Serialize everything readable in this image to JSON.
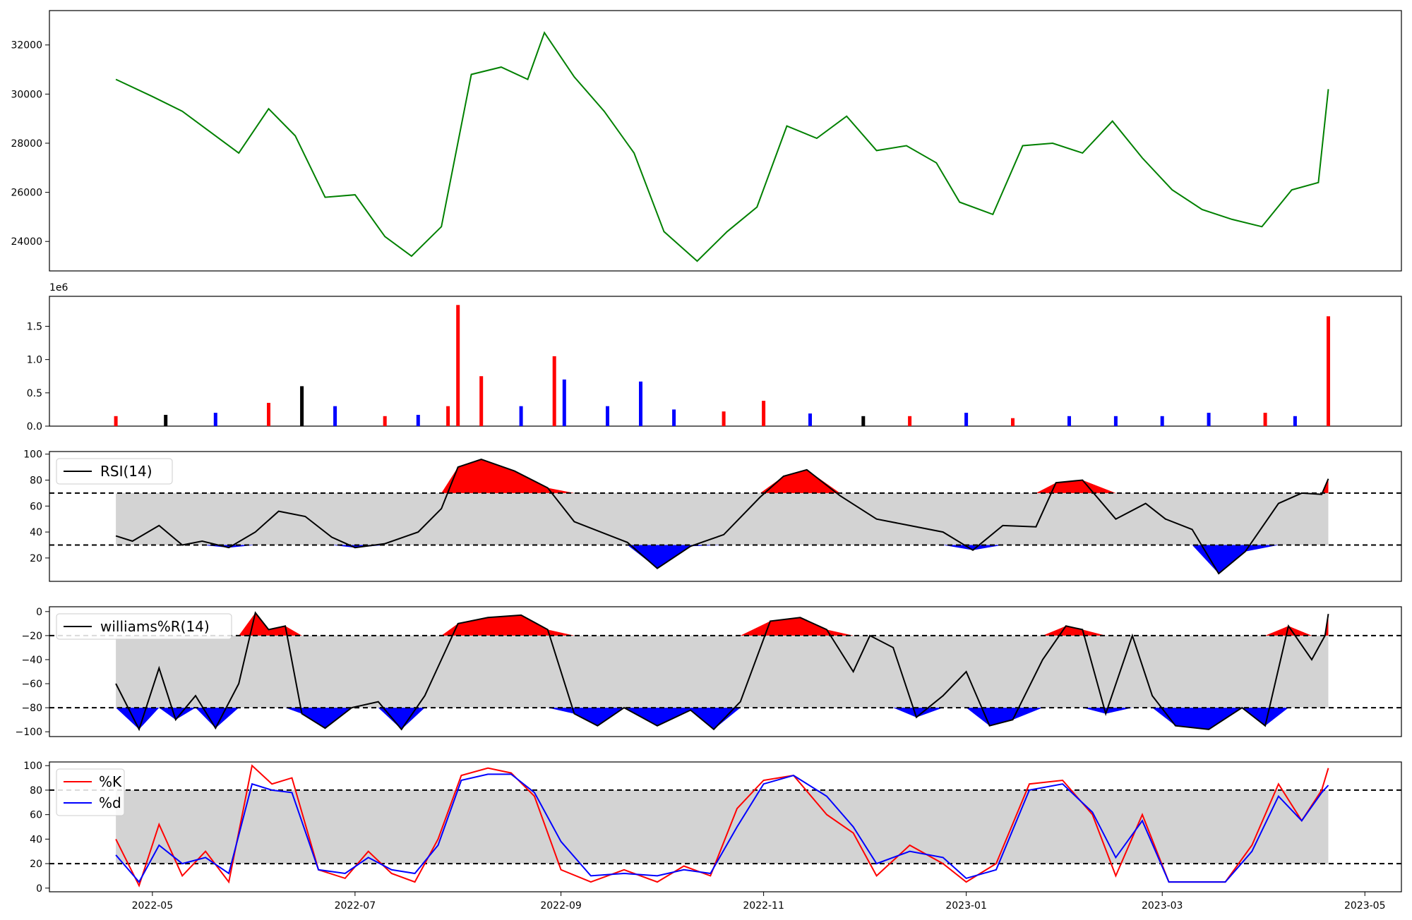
{
  "chart_data": [
    {
      "type": "line",
      "panel": "price",
      "ylim": [
        22800,
        33400
      ],
      "y_ticks": [
        24000,
        26000,
        28000,
        30000,
        32000
      ],
      "tick_labels": [
        "24000",
        "26000",
        "28000",
        "30000",
        "32000"
      ],
      "grid": false,
      "colors": {
        "line": "#008000"
      },
      "x": [
        "2022-04-20",
        "2022-05-01",
        "2022-05-10",
        "2022-05-18",
        "2022-05-27",
        "2022-06-05",
        "2022-06-13",
        "2022-06-22",
        "2022-07-01",
        "2022-07-10",
        "2022-07-18",
        "2022-07-27",
        "2022-08-05",
        "2022-08-14",
        "2022-08-22",
        "2022-08-27",
        "2022-09-05",
        "2022-09-14",
        "2022-09-23",
        "2022-10-02",
        "2022-10-12",
        "2022-10-21",
        "2022-10-30",
        "2022-11-08",
        "2022-11-17",
        "2022-11-26",
        "2022-12-05",
        "2022-12-14",
        "2022-12-23",
        "2022-12-30",
        "2023-01-09",
        "2023-01-18",
        "2023-01-27",
        "2023-02-05",
        "2023-02-14",
        "2023-02-23",
        "2023-03-04",
        "2023-03-13",
        "2023-03-22",
        "2023-03-31",
        "2023-04-09",
        "2023-04-17",
        "2023-04-20"
      ],
      "values": [
        30600,
        29900,
        29300,
        28500,
        27600,
        29400,
        28300,
        25800,
        25900,
        24200,
        23400,
        24600,
        30800,
        31100,
        30600,
        32500,
        30700,
        29300,
        27600,
        24400,
        23200,
        24400,
        25400,
        28700,
        28200,
        29100,
        27700,
        27900,
        27200,
        25600,
        25100,
        27900,
        28000,
        27600,
        28900,
        27400,
        26100,
        25300,
        24900,
        24600,
        26100,
        26400,
        30200
      ]
    },
    {
      "type": "bar",
      "panel": "volume",
      "ylim": [
        0,
        1950000
      ],
      "y_ticks": [
        0,
        500000,
        1000000,
        1500000
      ],
      "tick_labels": [
        "0.0",
        "0.5",
        "1.0",
        "1.5"
      ],
      "offset_label": "1e6",
      "grid": false,
      "colors": {
        "up": "#ff0000",
        "down": "#0000ff",
        "flat": "#000000"
      },
      "x": [
        "2022-04-20",
        "2022-05-05",
        "2022-05-20",
        "2022-06-05",
        "2022-06-15",
        "2022-06-25",
        "2022-07-10",
        "2022-07-20",
        "2022-07-29",
        "2022-08-01",
        "2022-08-08",
        "2022-08-20",
        "2022-08-30",
        "2022-09-02",
        "2022-09-15",
        "2022-09-25",
        "2022-10-05",
        "2022-10-20",
        "2022-11-01",
        "2022-11-15",
        "2022-12-01",
        "2022-12-15",
        "2023-01-01",
        "2023-01-15",
        "2023-02-01",
        "2023-02-15",
        "2023-03-01",
        "2023-03-15",
        "2023-04-01",
        "2023-04-10",
        "2023-04-20"
      ],
      "values": [
        150000,
        170000,
        200000,
        350000,
        600000,
        300000,
        150000,
        170000,
        300000,
        1820000,
        750000,
        300000,
        1050000,
        700000,
        300000,
        670000,
        250000,
        220000,
        380000,
        190000,
        150000,
        150000,
        200000,
        120000,
        150000,
        150000,
        150000,
        200000,
        200000,
        150000,
        1650000
      ],
      "directions": [
        "up",
        "flat",
        "down",
        "up",
        "flat",
        "down",
        "up",
        "down",
        "up",
        "up",
        "up",
        "down",
        "up",
        "down",
        "down",
        "down",
        "down",
        "up",
        "up",
        "down",
        "flat",
        "up",
        "down",
        "up",
        "down",
        "down",
        "down",
        "down",
        "up",
        "down",
        "up"
      ]
    },
    {
      "type": "line",
      "panel": "rsi",
      "ylim": [
        2,
        102
      ],
      "y_ticks": [
        20,
        40,
        60,
        80,
        100
      ],
      "tick_labels": [
        "20",
        "40",
        "60",
        "80",
        "100"
      ],
      "thresholds": [
        30,
        70
      ],
      "grid": false,
      "legend": "top-left",
      "series": [
        {
          "name": "RSI(14)",
          "color": "#000000"
        }
      ],
      "colors": {
        "overbought_fill": "#ff0000",
        "oversold_fill": "#0000ff",
        "band": "#d3d3d3"
      },
      "x": [
        "2022-04-20",
        "2022-04-25",
        "2022-05-03",
        "2022-05-10",
        "2022-05-16",
        "2022-05-24",
        "2022-06-01",
        "2022-06-08",
        "2022-06-16",
        "2022-06-24",
        "2022-07-01",
        "2022-07-10",
        "2022-07-20",
        "2022-07-27",
        "2022-08-01",
        "2022-08-08",
        "2022-08-18",
        "2022-08-28",
        "2022-09-05",
        "2022-09-15",
        "2022-09-21",
        "2022-09-30",
        "2022-10-10",
        "2022-10-20",
        "2022-10-31",
        "2022-11-07",
        "2022-11-14",
        "2022-11-24",
        "2022-12-05",
        "2022-12-15",
        "2022-12-25",
        "2023-01-03",
        "2023-01-12",
        "2023-01-22",
        "2023-01-28",
        "2023-02-05",
        "2023-02-15",
        "2023-02-24",
        "2023-03-02",
        "2023-03-10",
        "2023-03-18",
        "2023-03-26",
        "2023-04-05",
        "2023-04-12",
        "2023-04-18",
        "2023-04-20"
      ],
      "values": [
        37,
        33,
        45,
        30,
        33,
        28,
        40,
        56,
        52,
        36,
        28,
        31,
        40,
        58,
        90,
        96,
        87,
        74,
        48,
        38,
        32,
        12,
        29,
        38,
        67,
        83,
        88,
        68,
        50,
        45,
        40,
        26,
        45,
        44,
        78,
        80,
        50,
        62,
        50,
        42,
        8,
        25,
        62,
        70,
        69,
        81
      ]
    },
    {
      "type": "line",
      "panel": "williams",
      "ylim": [
        -104,
        4
      ],
      "y_ticks": [
        -100,
        -80,
        -60,
        -40,
        -20,
        0
      ],
      "tick_labels": [
        "−100",
        "−80",
        "−60",
        "−40",
        "−20",
        "0"
      ],
      "thresholds": [
        -80,
        -20
      ],
      "grid": false,
      "legend": "top-left",
      "series": [
        {
          "name": "williams%R(14)",
          "color": "#000000"
        }
      ],
      "colors": {
        "overbought_fill": "#ff0000",
        "oversold_fill": "#0000ff",
        "band": "#d3d3d3"
      },
      "x": [
        "2022-04-20",
        "2022-04-27",
        "2022-05-03",
        "2022-05-08",
        "2022-05-14",
        "2022-05-20",
        "2022-05-27",
        "2022-06-01",
        "2022-06-05",
        "2022-06-10",
        "2022-06-15",
        "2022-06-22",
        "2022-06-30",
        "2022-07-08",
        "2022-07-15",
        "2022-07-22",
        "2022-07-27",
        "2022-08-01",
        "2022-08-10",
        "2022-08-20",
        "2022-08-28",
        "2022-09-05",
        "2022-09-12",
        "2022-09-20",
        "2022-09-30",
        "2022-10-10",
        "2022-10-17",
        "2022-10-25",
        "2022-11-03",
        "2022-11-12",
        "2022-11-20",
        "2022-11-28",
        "2022-12-03",
        "2022-12-10",
        "2022-12-17",
        "2022-12-25",
        "2023-01-01",
        "2023-01-08",
        "2023-01-15",
        "2023-01-24",
        "2023-01-31",
        "2023-02-05",
        "2023-02-12",
        "2023-02-20",
        "2023-02-26",
        "2023-03-05",
        "2023-03-15",
        "2023-03-25",
        "2023-04-01",
        "2023-04-08",
        "2023-04-15",
        "2023-04-19",
        "2023-04-20"
      ],
      "values": [
        -60,
        -98,
        -47,
        -90,
        -70,
        -97,
        -60,
        -1,
        -15,
        -12,
        -85,
        -97,
        -80,
        -75,
        -98,
        -70,
        -40,
        -10,
        -5,
        -3,
        -15,
        -85,
        -95,
        -80,
        -95,
        -82,
        -98,
        -75,
        -8,
        -5,
        -15,
        -50,
        -20,
        -30,
        -88,
        -70,
        -50,
        -95,
        -90,
        -40,
        -12,
        -15,
        -85,
        -20,
        -70,
        -95,
        -98,
        -80,
        -95,
        -12,
        -40,
        -20,
        -2
      ]
    },
    {
      "type": "line",
      "panel": "stochastic",
      "ylim": [
        -3,
        103
      ],
      "y_ticks": [
        0,
        20,
        40,
        60,
        80,
        100
      ],
      "tick_labels": [
        "0",
        "20",
        "40",
        "60",
        "80",
        "100"
      ],
      "thresholds": [
        20,
        80
      ],
      "grid": false,
      "legend": "top-left",
      "colors": {
        "band": "#d3d3d3"
      },
      "x": [
        "2022-04-20",
        "2022-04-27",
        "2022-05-03",
        "2022-05-10",
        "2022-05-17",
        "2022-05-24",
        "2022-05-31",
        "2022-06-06",
        "2022-06-12",
        "2022-06-20",
        "2022-06-28",
        "2022-07-05",
        "2022-07-12",
        "2022-07-19",
        "2022-07-26",
        "2022-08-02",
        "2022-08-10",
        "2022-08-17",
        "2022-08-24",
        "2022-09-01",
        "2022-09-10",
        "2022-09-20",
        "2022-09-30",
        "2022-10-08",
        "2022-10-16",
        "2022-10-24",
        "2022-11-01",
        "2022-11-10",
        "2022-11-20",
        "2022-11-28",
        "2022-12-05",
        "2022-12-15",
        "2022-12-25",
        "2023-01-01",
        "2023-01-10",
        "2023-01-20",
        "2023-01-30",
        "2023-02-08",
        "2023-02-15",
        "2023-02-23",
        "2023-03-03",
        "2023-03-12",
        "2023-03-20",
        "2023-03-28",
        "2023-04-05",
        "2023-04-12",
        "2023-04-18",
        "2023-04-20"
      ],
      "series": [
        {
          "name": "%K",
          "color": "#ff0000",
          "values": [
            40,
            2,
            52,
            10,
            30,
            5,
            100,
            85,
            90,
            15,
            8,
            30,
            12,
            5,
            40,
            92,
            98,
            94,
            75,
            15,
            5,
            15,
            5,
            18,
            10,
            65,
            88,
            92,
            60,
            45,
            10,
            35,
            20,
            5,
            20,
            85,
            88,
            60,
            10,
            60,
            5,
            5,
            5,
            35,
            85,
            55,
            80,
            98
          ]
        },
        {
          "name": "%d",
          "color": "#0000ff",
          "values": [
            27,
            5,
            35,
            20,
            25,
            12,
            85,
            80,
            78,
            15,
            12,
            25,
            15,
            12,
            35,
            88,
            93,
            93,
            78,
            38,
            10,
            12,
            10,
            15,
            12,
            50,
            85,
            92,
            75,
            50,
            20,
            30,
            25,
            8,
            15,
            80,
            85,
            62,
            25,
            55,
            5,
            5,
            5,
            30,
            75,
            55,
            78,
            84
          ]
        }
      ]
    }
  ],
  "x_axis": {
    "ticks": [
      "2022-05-01",
      "2022-07-01",
      "2022-09-01",
      "2022-11-01",
      "2023-01-01",
      "2023-03-01",
      "2023-05-01"
    ],
    "labels": [
      "2022-05",
      "2022-07",
      "2022-09",
      "2022-11",
      "2023-01",
      "2023-03",
      "2023-05"
    ],
    "range": [
      "2022-03-31",
      "2023-05-12"
    ]
  }
}
